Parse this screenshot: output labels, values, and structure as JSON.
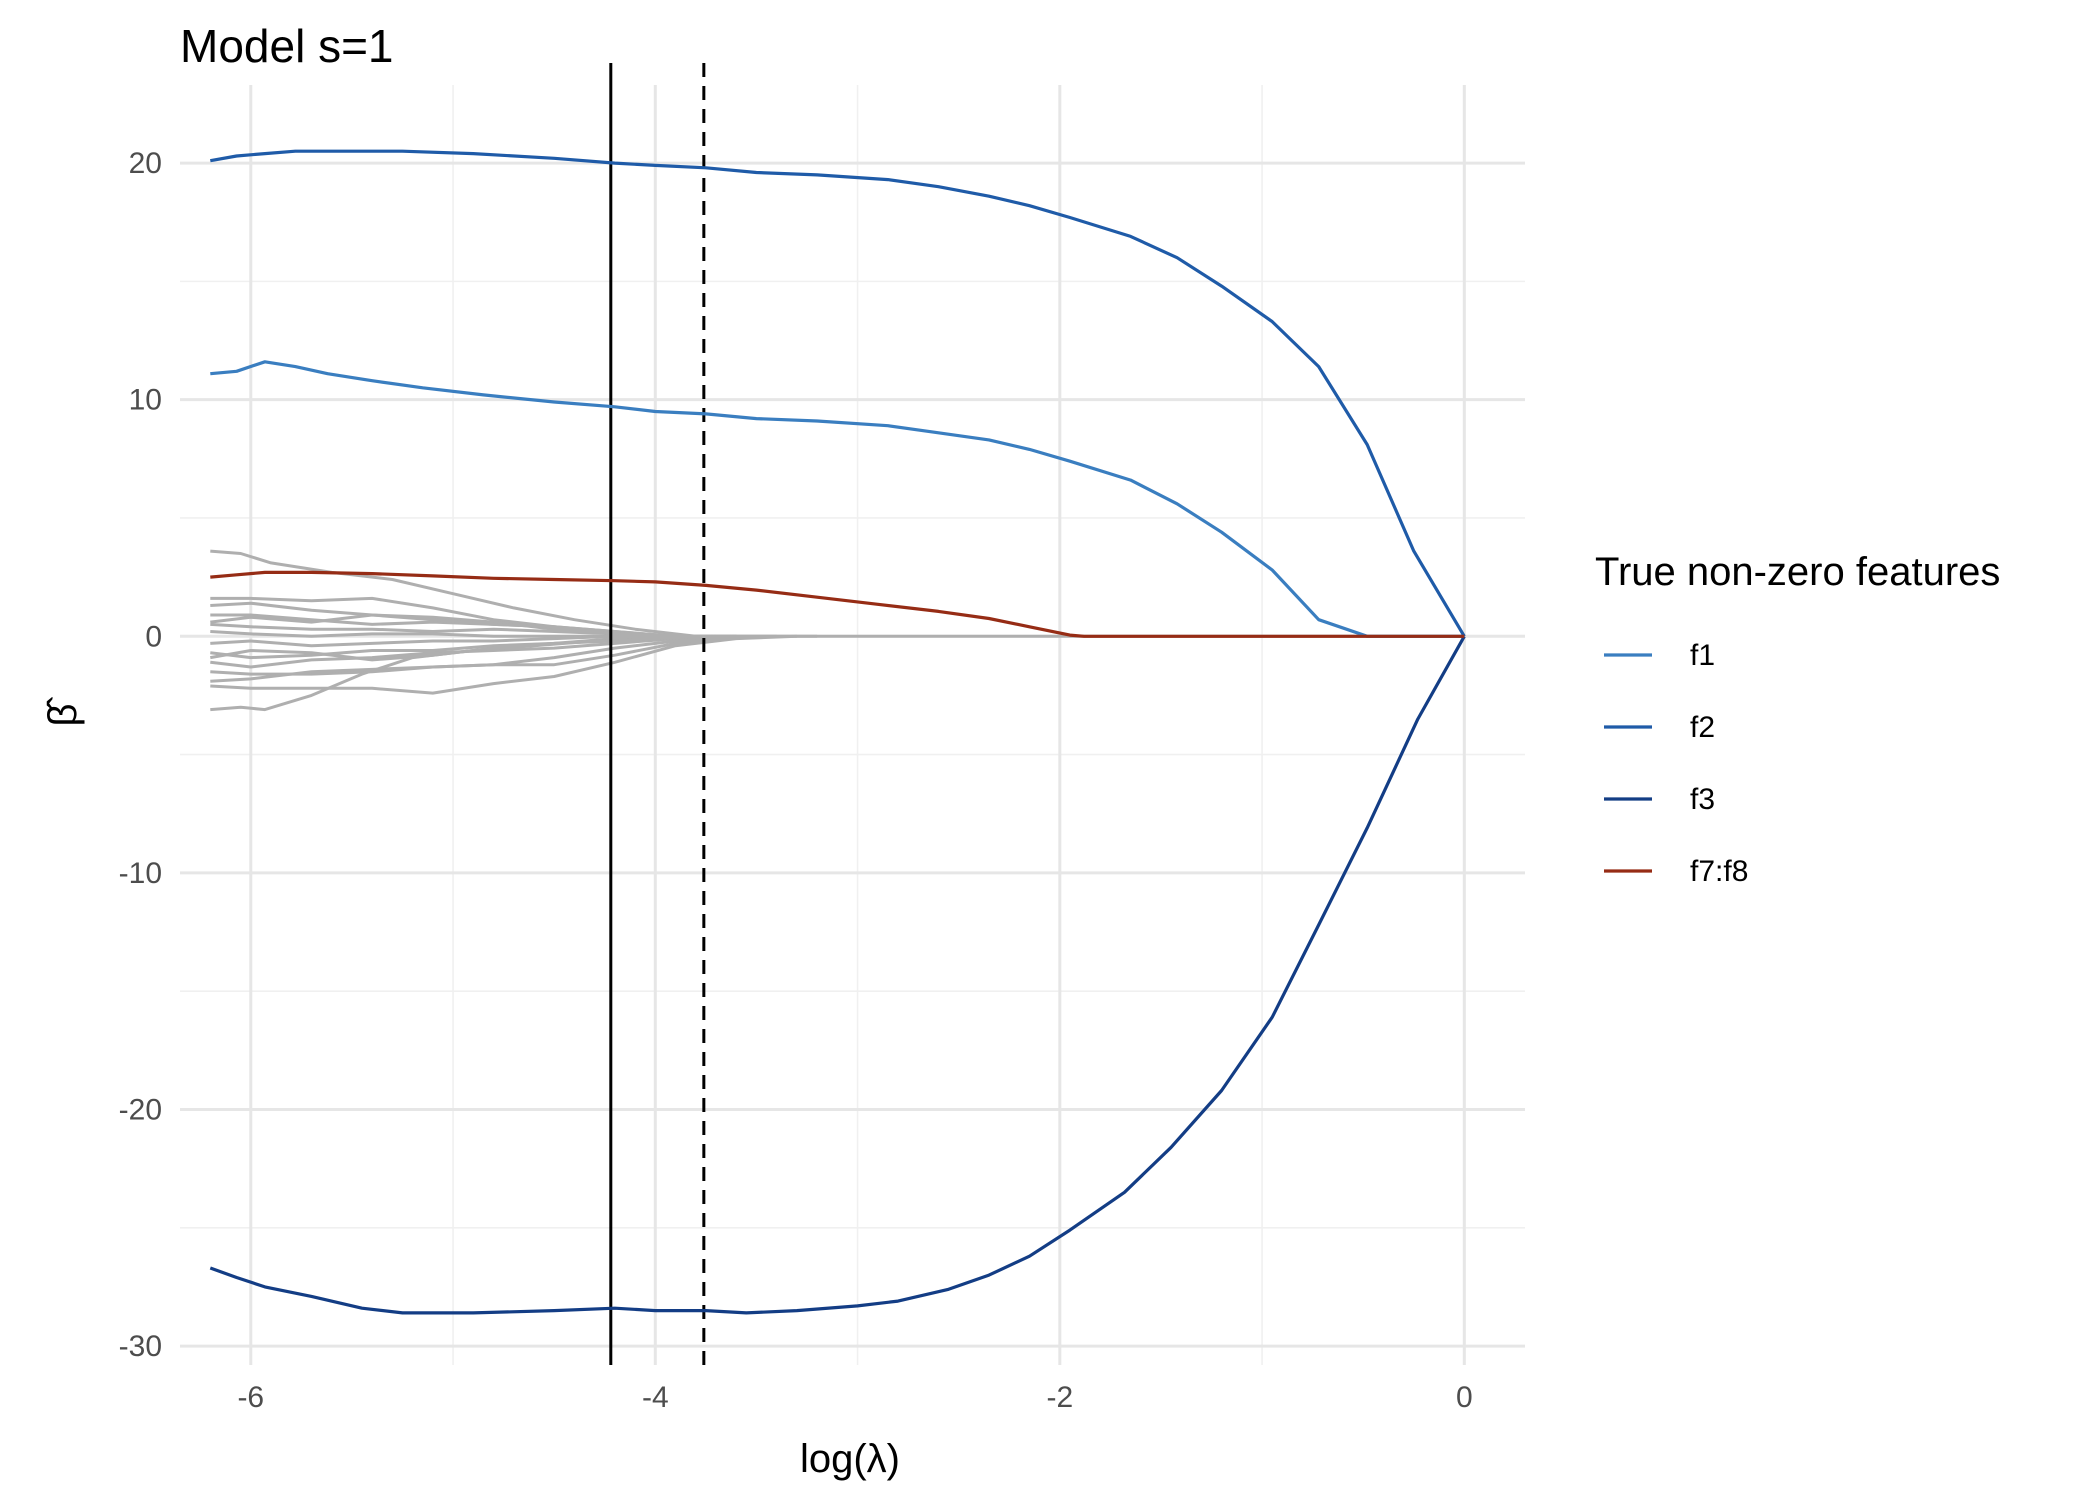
{
  "chart_data": {
    "type": "line",
    "title": "Model s=1",
    "xlabel": "log(λ)",
    "ylabel": "β̂",
    "xlim": [
      -6.35,
      0.3
    ],
    "ylim": [
      -30.8,
      23.3
    ],
    "xticks": [
      -6,
      -4,
      -2,
      0
    ],
    "yticks": [
      20,
      10,
      0,
      -10,
      -20,
      -30
    ],
    "xtick_labels": [
      "-6",
      "-4",
      "-2",
      "0"
    ],
    "ytick_labels": [
      "20",
      "10",
      "0",
      "-10",
      "-20",
      "-30"
    ],
    "grid": true,
    "legend": {
      "title": "True non-zero features",
      "position": "right"
    },
    "vlines": [
      {
        "x": -4.22,
        "style": "solid",
        "color": "#000000"
      },
      {
        "x": -3.76,
        "style": "dashed",
        "color": "#000000"
      }
    ],
    "series": [
      {
        "name": "f1",
        "color": "#3A7EC0",
        "x": [
          -6.2,
          -6.07,
          -5.93,
          -5.78,
          -5.62,
          -5.4,
          -5.15,
          -4.85,
          -4.5,
          -4.2,
          -4.0,
          -3.75,
          -3.5,
          -3.2,
          -2.85,
          -2.6,
          -2.35,
          -2.15,
          -1.95,
          -1.65,
          -1.42,
          -1.2,
          -0.95,
          -0.72,
          -0.48,
          -0.2,
          0.0
        ],
        "y": [
          11.1,
          11.2,
          11.6,
          11.4,
          11.1,
          10.8,
          10.5,
          10.2,
          9.9,
          9.7,
          9.5,
          9.4,
          9.2,
          9.1,
          8.9,
          8.6,
          8.3,
          7.9,
          7.4,
          6.6,
          5.6,
          4.4,
          2.8,
          0.7,
          0.0,
          0.0,
          0.0
        ]
      },
      {
        "name": "f2",
        "color": "#1F5BA8",
        "x": [
          -6.2,
          -6.07,
          -5.93,
          -5.78,
          -5.5,
          -5.25,
          -4.9,
          -4.5,
          -4.2,
          -4.0,
          -3.75,
          -3.5,
          -3.2,
          -2.85,
          -2.6,
          -2.35,
          -2.15,
          -1.95,
          -1.65,
          -1.42,
          -1.2,
          -0.95,
          -0.72,
          -0.48,
          -0.25,
          0.0
        ],
        "y": [
          20.1,
          20.3,
          20.4,
          20.5,
          20.5,
          20.5,
          20.4,
          20.2,
          20.0,
          19.9,
          19.8,
          19.6,
          19.5,
          19.3,
          19.0,
          18.6,
          18.2,
          17.7,
          16.9,
          16.0,
          14.8,
          13.3,
          11.4,
          8.1,
          3.6,
          0.0
        ]
      },
      {
        "name": "f3",
        "color": "#133D85",
        "x": [
          -6.2,
          -6.07,
          -5.93,
          -5.7,
          -5.45,
          -5.25,
          -4.9,
          -4.5,
          -4.2,
          -4.0,
          -3.75,
          -3.55,
          -3.3,
          -3.0,
          -2.8,
          -2.55,
          -2.35,
          -2.15,
          -1.95,
          -1.68,
          -1.45,
          -1.2,
          -0.95,
          -0.72,
          -0.48,
          -0.23,
          0.0
        ],
        "y": [
          -26.7,
          -27.1,
          -27.5,
          -27.9,
          -28.4,
          -28.6,
          -28.6,
          -28.5,
          -28.4,
          -28.5,
          -28.5,
          -28.6,
          -28.5,
          -28.3,
          -28.1,
          -27.6,
          -27.0,
          -26.2,
          -25.1,
          -23.5,
          -21.6,
          -19.2,
          -16.1,
          -12.2,
          -8.1,
          -3.5,
          0.0
        ]
      },
      {
        "name": "f7:f8",
        "color": "#962C15",
        "x": [
          -6.2,
          -6.07,
          -5.93,
          -5.7,
          -5.4,
          -5.1,
          -4.8,
          -4.5,
          -4.2,
          -4.0,
          -3.75,
          -3.5,
          -3.2,
          -2.9,
          -2.6,
          -2.35,
          -2.15,
          -1.95,
          -1.88,
          -1.5,
          -1.0,
          -0.5,
          0.0
        ],
        "y": [
          2.5,
          2.6,
          2.7,
          2.7,
          2.65,
          2.55,
          2.45,
          2.4,
          2.35,
          2.3,
          2.15,
          1.95,
          1.65,
          1.35,
          1.05,
          0.75,
          0.4,
          0.05,
          0.0,
          0.0,
          0.0,
          0.0,
          0.0
        ]
      }
    ],
    "background_series": {
      "color": "#AFAFAF",
      "lines": [
        {
          "x": [
            -6.2,
            -6.05,
            -5.9,
            -5.6,
            -5.3,
            -5.0,
            -4.7,
            -4.4,
            -4.1,
            -3.8,
            -3.5,
            -3.2
          ],
          "y": [
            3.6,
            3.5,
            3.1,
            2.7,
            2.4,
            1.8,
            1.2,
            0.7,
            0.3,
            0.0,
            0.0,
            0.0
          ]
        },
        {
          "x": [
            -6.2,
            -6.0,
            -5.7,
            -5.4,
            -5.1,
            -4.8,
            -4.5,
            -4.2,
            -3.9,
            -3.6
          ],
          "y": [
            1.6,
            1.6,
            1.5,
            1.6,
            1.2,
            0.7,
            0.4,
            0.2,
            0.0,
            0.0
          ]
        },
        {
          "x": [
            -6.2,
            -6.0,
            -5.7,
            -5.4,
            -5.1,
            -4.8,
            -4.5,
            -4.2,
            -3.9,
            -3.6
          ],
          "y": [
            1.3,
            1.4,
            1.1,
            0.9,
            0.8,
            0.6,
            0.3,
            0.1,
            0.0,
            0.0
          ]
        },
        {
          "x": [
            -6.2,
            -6.0,
            -5.7,
            -5.4,
            -5.1,
            -4.8,
            -4.5,
            -4.2,
            -3.9,
            -3.6
          ],
          "y": [
            0.9,
            0.9,
            0.7,
            0.5,
            0.6,
            0.5,
            0.4,
            0.2,
            0.0,
            0.0
          ]
        },
        {
          "x": [
            -6.2,
            -6.0,
            -5.7,
            -5.4,
            -5.1,
            -4.8,
            -4.5,
            -4.2,
            -3.9,
            -3.6
          ],
          "y": [
            0.5,
            0.4,
            0.3,
            0.3,
            0.2,
            0.3,
            0.2,
            0.1,
            0.0,
            0.0
          ]
        },
        {
          "x": [
            -6.2,
            -6.0,
            -5.7,
            -5.4,
            -5.1,
            -4.8,
            -4.5,
            -4.2,
            -3.9,
            -3.6
          ],
          "y": [
            0.2,
            0.1,
            0.0,
            0.1,
            0.1,
            0.0,
            0.0,
            0.0,
            0.0,
            0.0
          ]
        },
        {
          "x": [
            -6.2,
            -6.0,
            -5.7,
            -5.4,
            -5.1,
            -4.8,
            -4.5,
            -4.2,
            -3.9,
            -3.6
          ],
          "y": [
            -0.3,
            -0.2,
            -0.4,
            -0.3,
            -0.2,
            -0.2,
            -0.1,
            0.0,
            0.0,
            0.0
          ]
        },
        {
          "x": [
            -6.2,
            -6.0,
            -5.7,
            -5.4,
            -5.1,
            -4.8,
            -4.5,
            -4.2,
            -3.9,
            -3.6
          ],
          "y": [
            -0.7,
            -0.9,
            -0.8,
            -0.6,
            -0.6,
            -0.4,
            -0.3,
            -0.1,
            0.0,
            0.0
          ]
        },
        {
          "x": [
            -6.2,
            -6.0,
            -5.7,
            -5.4,
            -5.1,
            -4.8,
            -4.5,
            -4.2,
            -3.9,
            -3.6
          ],
          "y": [
            -1.1,
            -1.3,
            -1.0,
            -0.9,
            -0.7,
            -0.6,
            -0.5,
            -0.3,
            -0.1,
            0.0
          ]
        },
        {
          "x": [
            -6.2,
            -6.0,
            -5.7,
            -5.4,
            -5.1,
            -4.8,
            -4.5,
            -4.2,
            -3.9,
            -3.6
          ],
          "y": [
            -1.5,
            -1.6,
            -1.6,
            -1.5,
            -1.3,
            -1.2,
            -0.9,
            -0.5,
            -0.2,
            0.0
          ]
        },
        {
          "x": [
            -6.2,
            -6.0,
            -5.7,
            -5.4,
            -5.1,
            -4.8,
            -4.5,
            -4.2,
            -3.9,
            -3.6
          ],
          "y": [
            -1.9,
            -1.8,
            -1.5,
            -1.4,
            -1.3,
            -1.2,
            -1.2,
            -0.8,
            -0.3,
            0.0
          ]
        },
        {
          "x": [
            -6.2,
            -6.0,
            -5.7,
            -5.4,
            -5.1,
            -4.8,
            -4.5,
            -4.2,
            -3.9,
            -3.6,
            -3.3
          ],
          "y": [
            -2.1,
            -2.2,
            -2.2,
            -2.2,
            -2.4,
            -2.0,
            -1.7,
            -1.1,
            -0.4,
            -0.1,
            0.0
          ]
        },
        {
          "x": [
            -6.2,
            -6.05,
            -5.93,
            -5.7,
            -5.45,
            -5.2,
            -4.9,
            -4.6,
            -4.3,
            -4.0,
            -3.7,
            -3.4
          ],
          "y": [
            -3.1,
            -3.0,
            -3.1,
            -2.5,
            -1.6,
            -0.9,
            -0.6,
            -0.4,
            -0.2,
            -0.1,
            0.0,
            0.0
          ]
        },
        {
          "x": [
            -6.2,
            -6.0,
            -5.7,
            -5.4,
            -5.1,
            -4.8,
            -4.5,
            -4.2,
            -3.9,
            -3.6
          ],
          "y": [
            0.6,
            0.8,
            0.6,
            0.9,
            0.7,
            0.5,
            0.4,
            0.1,
            0.0,
            0.0
          ]
        },
        {
          "x": [
            -6.2,
            -6.0,
            -5.7,
            -5.4,
            -5.1,
            -4.8,
            -4.5,
            -4.2,
            -3.9,
            -3.6
          ],
          "y": [
            -0.9,
            -0.6,
            -0.7,
            -1.0,
            -0.8,
            -0.5,
            -0.3,
            -0.2,
            0.0,
            0.0
          ]
        },
        {
          "x": [
            -4.22,
            -3.5,
            -3.0,
            -2.0,
            -1.0,
            0.0
          ],
          "y": [
            0.0,
            0.0,
            0.0,
            0.0,
            0.0,
            0.0
          ]
        }
      ]
    }
  }
}
